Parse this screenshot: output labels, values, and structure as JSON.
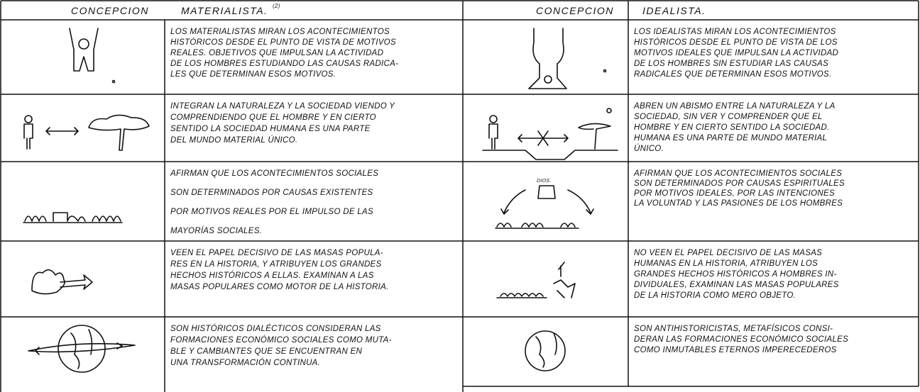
{
  "left": {
    "header": [
      "CONCEPCION",
      "MATERIALISTA.",
      "(2)"
    ],
    "rows": [
      [
        "LOS MATERIALISTAS MIRAN LOS ACONTECIMIENTOS",
        "HISTÓRICOS DESDE EL PUNTO DE VISTA DE MOTIVOS",
        "REALES. OBJETIVOS QUE IMPULSAN LA ACTIVIDAD",
        "DE LOS HOMBRES ESTUDIANDO LAS CAUSAS RADICA-",
        "LES QUE DETERMINAN ESOS MOTIVOS."
      ],
      [
        "INTEGRAN LA NATURALEZA Y LA SOCIEDAD VIENDO Y",
        "COMPRENDIENDO QUE EL HOMBRE Y EN CIERTO",
        "SENTIDO LA SOCIEDAD HUMANA ES UNA PARTE",
        "DEL MUNDO MATERIAL ÚNICO."
      ],
      [
        "AFIRMAN QUE LOS ACONTECIMIENTOS SOCIALES",
        "SON DETERMINADOS POR CAUSAS EXISTENTES",
        "POR MOTIVOS REALES POR EL IMPULSO DE LAS",
        "MAYORÍAS SOCIALES."
      ],
      [
        "VEEN EL PAPEL DECISIVO DE LAS MASAS POPULA-",
        "RES EN LA HISTORIA, Y ATRIBUYEN LOS GRANDES",
        "HECHOS HISTÓRICOS A ELLAS. EXAMINAN A LAS",
        "MASAS POPULARES COMO MOTOR DE LA HISTORIA."
      ],
      [
        "SON HISTÓRICOS DIALÉCTICOS CONSIDERAN LAS",
        "FORMACIONES ECONÓMICO SOCIALES COMO MUTA-",
        "BLE Y CAMBIANTES QUE SE ENCUENTRAN EN",
        "UNA TRANSFORMACIÓN CONTINUA."
      ]
    ]
  },
  "right": {
    "header": [
      "CONCEPCION",
      "IDEALISTA."
    ],
    "rows": [
      [
        "LOS IDEALISTAS MIRAN LOS ACONTECIMIENTOS",
        "HISTÓRICOS DESDE EL PUNTO DE VISTA DE LOS",
        "MOTIVOS IDEALES QUE IMPULSAN LA ACTIVIDAD",
        "DE LOS HOMBRES SIN ESTUDIAR LAS CAUSAS",
        "RADICALES QUE DETERMINAN ESOS MOTIVOS."
      ],
      [
        "ABREN UN ABISMO ENTRE LA NATURALEZA Y LA",
        "SOCIEDAD, SIN VER Y COMPRENDER QUE EL",
        "HOMBRE Y EN CIERTO SENTIDO LA SOCIEDAD.",
        "HUMANA ES UNA PARTE DE MUNDO MATERIAL",
        "ÚNICO."
      ],
      [
        "AFIRMAN QUE LOS ACONTECIMIENTOS SOCIALES",
        "SON DETERMINADOS POR CAUSAS ESPIRITUALES",
        "POR MOTIVOS IDEALES, POR LAS INTENCIONES",
        "LA VOLUNTAD Y LAS PASIONES DE LOS HOMBRES"
      ],
      [
        "NO VEEN EL PAPEL DECISIVO DE LAS MASAS",
        "HUMANAS EN LA HISTORIA, ATRIBUYEN LOS",
        "GRANDES HECHOS HISTÓRICOS A HOMBRES IN-",
        "DIVIDUALES, EXAMINAN LAS MASAS POPULARES",
        "DE LA HISTORIA COMO MERO OBJETO."
      ],
      [
        "SON ANTIHISTORICISTAS, METAFÍSICOS CONSI-",
        "DERAN LAS FORMACIONES ECONÓMICO SOCIALES",
        "COMO INMUTABLES ETERNOS IMPERECEDEROS"
      ]
    ],
    "illustration_label": "DIOS."
  }
}
